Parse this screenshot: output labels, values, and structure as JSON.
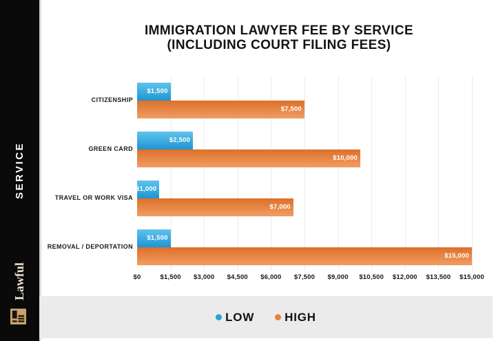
{
  "sidebar": {
    "service_label": "SERVICE",
    "brand_name": "Lawful",
    "background_color": "#0a0a0a",
    "brand_text_color": "#ece3d1",
    "logo_color": "#c9a169"
  },
  "title": {
    "line1": "IMMIGRATION LAWYER FEE BY SERVICE",
    "line2": "(INCLUDING COURT FILING FEES)"
  },
  "chart_data": {
    "type": "bar",
    "orientation": "horizontal",
    "title": "IMMIGRATION LAWYER FEE BY SERVICE (INCLUDING COURT FILING FEES)",
    "categories": [
      "CITIZENSHIP",
      "GREEN CARD",
      "TRAVEL OR WORK VISA",
      "REMOVAL / DEPORTATION"
    ],
    "series": [
      {
        "name": "LOW",
        "color": "#2da0d8",
        "color_gradient": [
          "#5fc3ee",
          "#1e95d2"
        ],
        "values": [
          1500,
          2500,
          1000,
          1500
        ],
        "value_labels": [
          "$1,500",
          "$2,500",
          "$1,000",
          "$1,500"
        ]
      },
      {
        "name": "HIGH",
        "color": "#e8823e",
        "color_gradient": [
          "#dc7029",
          "#f19d64"
        ],
        "values": [
          7500,
          10000,
          7000,
          15000
        ],
        "value_labels": [
          "$7,500",
          "$10,000",
          "$7,000",
          "$15,000"
        ]
      }
    ],
    "xlim": [
      0,
      15000
    ],
    "x_ticks": [
      0,
      1500,
      3000,
      4500,
      6000,
      7500,
      9000,
      10500,
      12000,
      13500,
      15000
    ],
    "x_tick_labels": [
      "$0",
      "$1,500",
      "$3,000",
      "$4,500",
      "$6,000",
      "$7,500",
      "$9,000",
      "$10,500",
      "$12,000",
      "$13,500",
      "$15,000"
    ],
    "grid": true,
    "gridline_color": "#ececec",
    "legend_position": "bottom"
  },
  "legend": {
    "items": [
      {
        "label": "LOW",
        "color": "#2da0d8"
      },
      {
        "label": "HIGH",
        "color": "#e8823e"
      }
    ]
  }
}
